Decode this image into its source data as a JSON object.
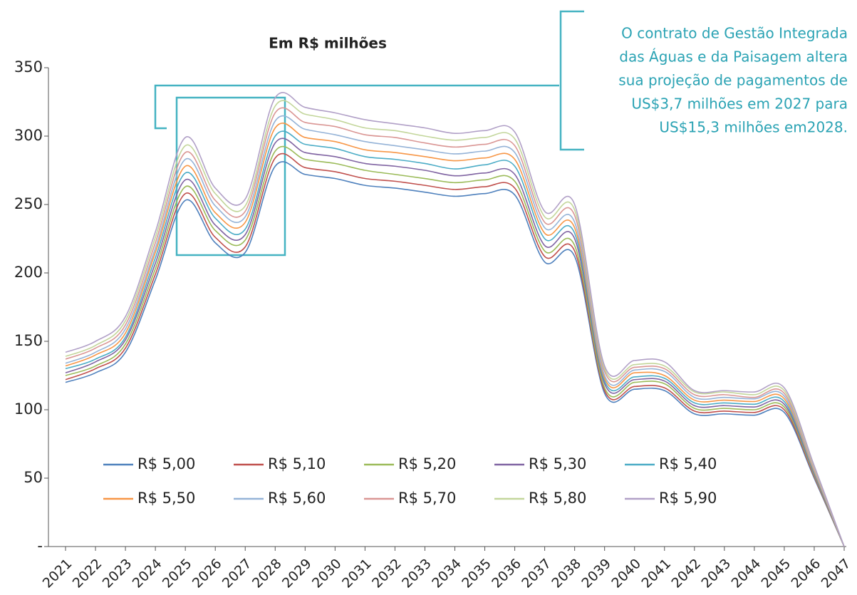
{
  "chart_data": {
    "type": "line",
    "title": "Em R$ milhões",
    "annotation": [
      "O contrato de Gestão Integrada",
      "das Águas e da Paisagem altera",
      "sua projeção de pagamentos de",
      "US$3,7 milhões em 2027 para",
      "US$15,3 milhões em2028."
    ],
    "categories": [
      "2021",
      "2022",
      "2023",
      "2024",
      "2025",
      "2026",
      "2027",
      "2028",
      "2029",
      "2030",
      "2031",
      "2032",
      "2033",
      "2034",
      "2035",
      "2036",
      "2037",
      "2038",
      "2039",
      "2040",
      "2041",
      "2042",
      "2043",
      "2044",
      "2045",
      "2046",
      "2047"
    ],
    "ylim": [
      0,
      350
    ],
    "yticks": [
      {
        "value": 0,
        "label": "-"
      },
      50,
      100,
      150,
      200,
      250,
      300,
      350
    ],
    "legend": "bottom-left",
    "series": [
      {
        "name": "R$ 5,00",
        "color": "#4f81bd",
        "values": [
          120,
          127,
          142,
          195,
          253,
          222,
          215,
          278,
          272,
          269,
          264,
          262,
          259,
          256,
          258,
          257,
          208,
          212,
          112,
          115,
          114,
          97,
          97,
          96,
          98,
          50,
          0
        ]
      },
      {
        "name": "R$ 5,10",
        "color": "#c0504d",
        "values": [
          122,
          130,
          145,
          199,
          258,
          226,
          219,
          284,
          277,
          274,
          269,
          267,
          264,
          261,
          263,
          262,
          212,
          216,
          114,
          117,
          116,
          99,
          99,
          98,
          100,
          51,
          0
        ]
      },
      {
        "name": "R$ 5,20",
        "color": "#9bbb59",
        "values": [
          125,
          132,
          148,
          203,
          263,
          231,
          224,
          289,
          283,
          280,
          275,
          272,
          269,
          266,
          268,
          267,
          216,
          220,
          116,
          120,
          119,
          101,
          101,
          100,
          102,
          52,
          0
        ]
      },
      {
        "name": "R$ 5,30",
        "color": "#8064a2",
        "values": [
          127,
          135,
          151,
          207,
          268,
          235,
          228,
          295,
          288,
          285,
          280,
          278,
          275,
          271,
          273,
          272,
          220,
          225,
          119,
          122,
          121,
          103,
          103,
          102,
          104,
          53,
          0
        ]
      },
      {
        "name": "R$ 5,40",
        "color": "#4bacc6",
        "values": [
          130,
          137,
          153,
          211,
          273,
          240,
          232,
          300,
          294,
          291,
          285,
          283,
          280,
          276,
          279,
          278,
          225,
          229,
          121,
          124,
          123,
          105,
          105,
          104,
          106,
          54,
          0
        ]
      },
      {
        "name": "R$ 5,50",
        "color": "#f79646",
        "values": [
          132,
          140,
          156,
          215,
          278,
          244,
          237,
          306,
          299,
          296,
          290,
          288,
          285,
          282,
          284,
          283,
          229,
          233,
          123,
          127,
          125,
          107,
          107,
          106,
          108,
          55,
          0
        ]
      },
      {
        "name": "R$ 5,60",
        "color": "#95b3d7",
        "values": [
          134,
          142,
          159,
          218,
          283,
          249,
          241,
          311,
          305,
          301,
          296,
          293,
          290,
          287,
          289,
          288,
          233,
          237,
          125,
          129,
          128,
          109,
          109,
          108,
          110,
          56,
          0
        ]
      },
      {
        "name": "R$ 5,70",
        "color": "#da9694",
        "values": [
          137,
          145,
          162,
          222,
          288,
          253,
          245,
          317,
          310,
          307,
          301,
          299,
          295,
          292,
          294,
          293,
          237,
          242,
          128,
          131,
          130,
          111,
          111,
          109,
          112,
          57,
          0
        ]
      },
      {
        "name": "R$ 5,80",
        "color": "#c3d69b",
        "values": [
          139,
          147,
          165,
          226,
          293,
          258,
          249,
          322,
          316,
          312,
          306,
          304,
          300,
          297,
          299,
          298,
          241,
          246,
          130,
          133,
          132,
          113,
          113,
          111,
          114,
          58,
          0
        ]
      },
      {
        "name": "R$ 5,90",
        "color": "#b1a0c7",
        "values": [
          142,
          150,
          168,
          230,
          299,
          262,
          254,
          328,
          321,
          317,
          312,
          309,
          306,
          302,
          304,
          303,
          245,
          250,
          132,
          136,
          135,
          114,
          114,
          113,
          116,
          59,
          0
        ]
      }
    ]
  }
}
